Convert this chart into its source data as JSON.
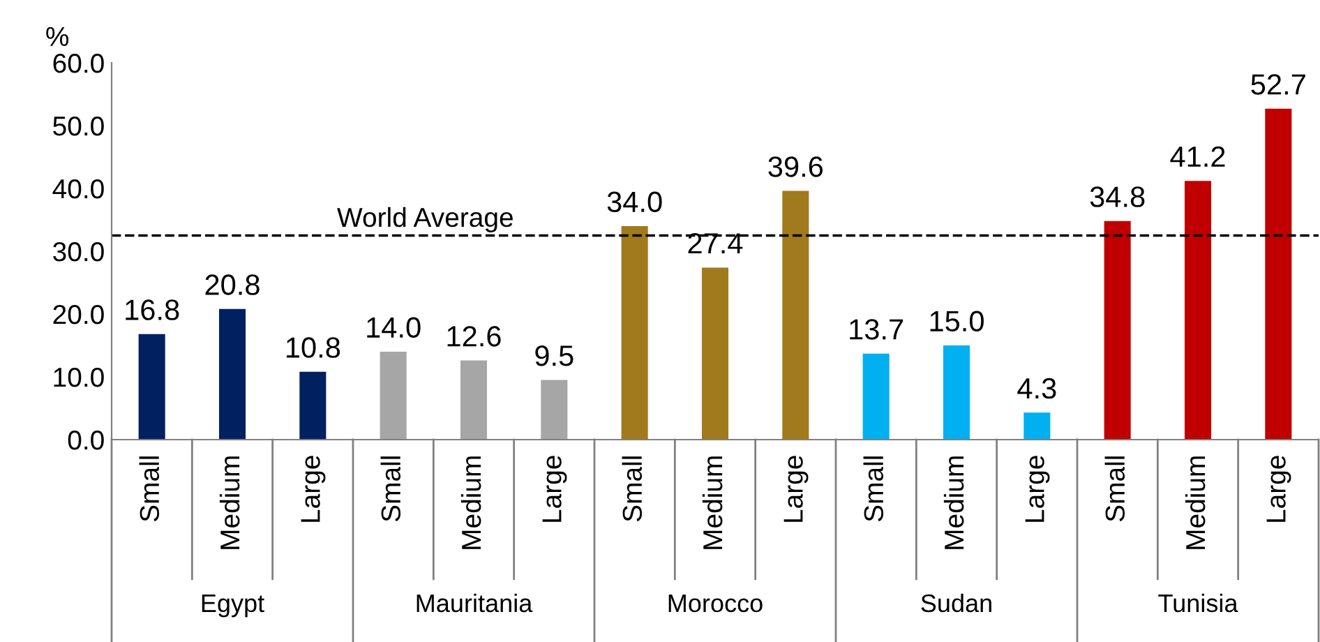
{
  "chart_data": {
    "type": "bar",
    "ylabel": "%",
    "categories": [
      "Small",
      "Medium",
      "Large",
      "Small",
      "Medium",
      "Large",
      "Small",
      "Medium",
      "Large",
      "Small",
      "Medium",
      "Large",
      "Small",
      "Medium",
      "Large"
    ],
    "values": [
      16.8,
      20.8,
      10.8,
      14.0,
      12.6,
      9.5,
      34.0,
      27.4,
      39.6,
      13.7,
      15.0,
      4.3,
      34.8,
      41.2,
      52.7
    ],
    "value_labels": [
      "16.8",
      "20.8",
      "10.8",
      "14.0",
      "12.6",
      "9.5",
      "34.0",
      "27.4",
      "39.6",
      "13.7",
      "15.0",
      "4.3",
      "34.8",
      "41.2",
      "52.7"
    ],
    "colors": [
      "#002060",
      "#002060",
      "#002060",
      "#a6a6a6",
      "#a6a6a6",
      "#a6a6a6",
      "#a07a1c",
      "#a07a1c",
      "#a07a1c",
      "#00b0f0",
      "#00b0f0",
      "#00b0f0",
      "#c00000",
      "#c00000",
      "#c00000"
    ],
    "annotations": [
      "Egypt",
      "Mauritania",
      "Morocco",
      "Sudan",
      "Tunisia"
    ],
    "ylim": [
      0,
      60
    ],
    "yticks": [
      {
        "value": 0,
        "label": "0.0"
      },
      {
        "value": 10,
        "label": "10.0"
      },
      {
        "value": 20,
        "label": "20.0"
      },
      {
        "value": 30,
        "label": "30.0"
      },
      {
        "value": 40,
        "label": "40.0"
      },
      {
        "value": 50,
        "label": "50.0"
      },
      {
        "value": 60,
        "label": "60.0"
      }
    ],
    "ref_lines": [
      {
        "axis": "y",
        "value": 32.5,
        "label": "World Average",
        "color": "#000000",
        "line_style": "dashed"
      }
    ],
    "grid": false,
    "legend": false
  }
}
